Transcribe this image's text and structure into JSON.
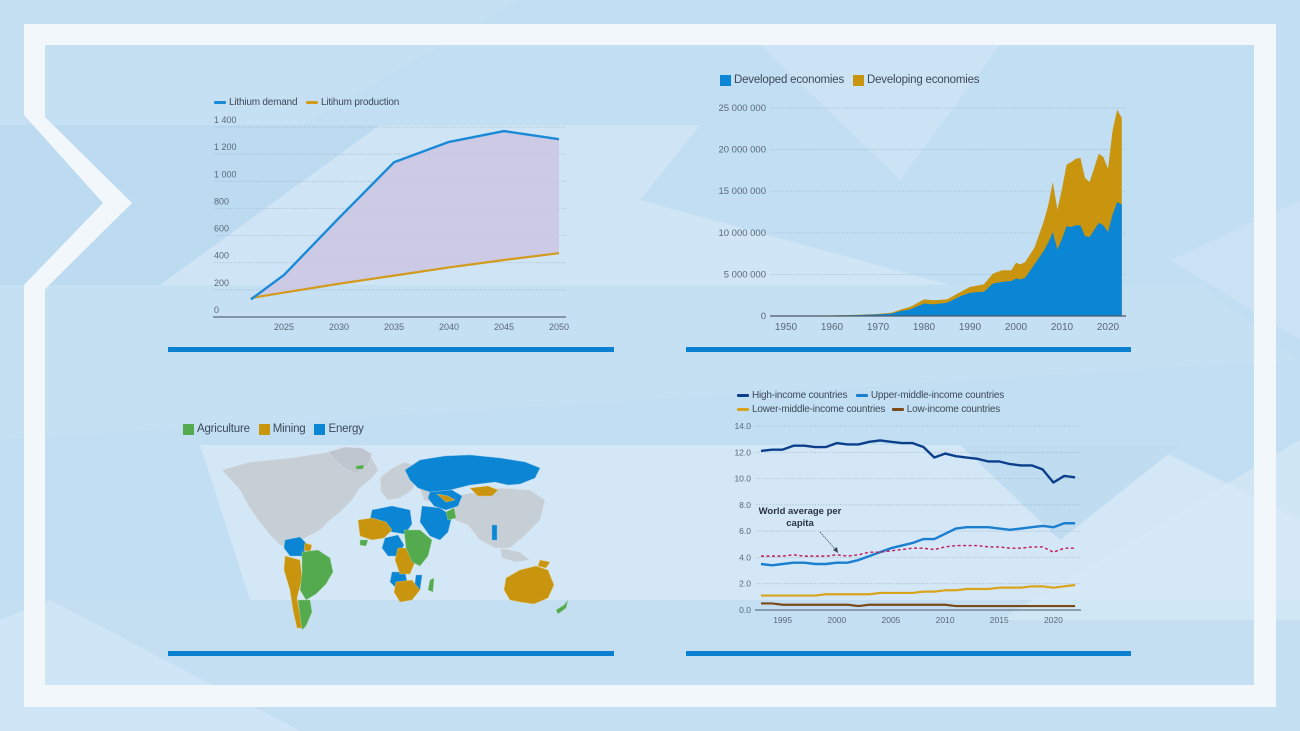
{
  "colors": {
    "background": "#c2def2",
    "frame": "#f2f7fc",
    "accent_bar": "#0a80d0",
    "blue": "#0a86d4",
    "gold": "#c9950f",
    "green": "#54ab4f",
    "navy": "#0b3f8c",
    "brown": "#7a4a1a",
    "world_avg": "#c2185b",
    "fill_gap": "#cdc6e2",
    "land_gray": "#c6ced6"
  },
  "panels": {
    "lithium": {
      "legend": [
        {
          "label": "Lithium demand",
          "color": "#1a8ad8"
        },
        {
          "label": "Litihum production",
          "color": "#d39b1d"
        }
      ]
    },
    "economies": {
      "legend": [
        {
          "label": "Developed economies",
          "color": "#0a86d4"
        },
        {
          "label": "Developing economies",
          "color": "#c9950f"
        }
      ]
    },
    "map": {
      "legend": [
        {
          "label": "Agriculture",
          "color": "#54ab4f"
        },
        {
          "label": "Mining",
          "color": "#c9950f"
        },
        {
          "label": "Energy",
          "color": "#0a86d4"
        }
      ]
    },
    "income": {
      "legend": [
        {
          "label": "High-income countries",
          "color": "#0b3f8c"
        },
        {
          "label": "Upper-middle-income countries",
          "color": "#1a7fd0"
        },
        {
          "label": "Lower-middle-income countries",
          "color": "#d9a41c"
        },
        {
          "label": "Low-income countries",
          "color": "#7a4a1a"
        }
      ],
      "annotation_line1": "World average per",
      "annotation_line2": "capita"
    }
  },
  "chart_data": [
    {
      "type": "line",
      "title": "",
      "xlabel": "",
      "ylabel": "",
      "x": [
        2022,
        2025,
        2030,
        2035,
        2040,
        2045,
        2050
      ],
      "x_ticks": [
        2025,
        2030,
        2035,
        2040,
        2045,
        2050
      ],
      "y_ticks": [
        "0",
        "200",
        "400",
        "600",
        "800",
        "1 000",
        "1 200",
        "1 400"
      ],
      "ylim": [
        0,
        1400
      ],
      "series": [
        {
          "name": "Lithium demand",
          "values": [
            130,
            310,
            730,
            1140,
            1290,
            1370,
            1310
          ]
        },
        {
          "name": "Litihum production",
          "values": [
            140,
            180,
            245,
            305,
            365,
            420,
            470
          ]
        }
      ],
      "area_between_series": true,
      "grid": "horizontal dotted",
      "legend_position": "top-left"
    },
    {
      "type": "area",
      "stacked": true,
      "title": "",
      "xlabel": "",
      "ylabel": "",
      "x": [
        1947,
        1950,
        1955,
        1960,
        1965,
        1970,
        1973,
        1975,
        1977,
        1980,
        1982,
        1985,
        1988,
        1990,
        1992,
        1993,
        1995,
        1997,
        1999,
        2000,
        2001,
        2002,
        2004,
        2006,
        2007,
        2008,
        2009,
        2010,
        2011,
        2012,
        2013,
        2014,
        2015,
        2016,
        2018,
        2019,
        2020,
        2021,
        2022,
        2023
      ],
      "x_ticks": [
        1950,
        1960,
        1970,
        1980,
        1990,
        2000,
        2010,
        2020
      ],
      "y_ticks": [
        "0",
        "5 000 000",
        "10 000 000",
        "15 000 000",
        "20 000 000",
        "25 000 000"
      ],
      "ylim": [
        0,
        25000000
      ],
      "series": [
        {
          "name": "Developed economies",
          "values": [
            10000,
            20000,
            40000,
            60000,
            100000,
            200000,
            300000,
            600000,
            800000,
            1500000,
            1400000,
            1600000,
            2400000,
            2800000,
            2900000,
            2900000,
            3900000,
            4100000,
            4200000,
            4500000,
            4400000,
            4600000,
            6200000,
            7800000,
            8800000,
            10100000,
            8000000,
            9300000,
            10800000,
            10700000,
            10900000,
            10900000,
            9600000,
            9500000,
            11200000,
            10900000,
            10100000,
            12200000,
            13700000,
            13400000
          ]
        },
        {
          "name": "Developing economies",
          "values": [
            0,
            0,
            0,
            10000,
            30000,
            60000,
            100000,
            200000,
            300000,
            500000,
            500000,
            400000,
            500000,
            700000,
            800000,
            900000,
            1200000,
            1400000,
            1300000,
            1900000,
            1800000,
            1900000,
            2000000,
            3500000,
            4500000,
            6000000,
            4800000,
            6000000,
            7400000,
            7800000,
            8000000,
            8100000,
            7000000,
            6600000,
            8300000,
            8200000,
            7600000,
            10100000,
            11100000,
            10400000
          ]
        }
      ],
      "grid": "horizontal dotted",
      "legend_position": "top-left"
    },
    {
      "type": "choropleth",
      "title": "",
      "legend": [
        "Agriculture",
        "Mining",
        "Energy"
      ],
      "regions": {
        "Agriculture": [
          "Brazil",
          "Argentina",
          "Paraguay",
          "Uruguay",
          "Sudan",
          "Ethiopia",
          "Kenya",
          "Madagascar",
          "New Zealand",
          "Afghanistan",
          "Iceland",
          "Cuba"
        ],
        "Mining": [
          "Peru",
          "Bolivia",
          "Chile",
          "Guyana",
          "Suriname",
          "Mali",
          "Niger",
          "Mauritania",
          "DR Congo",
          "Zambia",
          "Namibia",
          "Botswana",
          "South Africa",
          "Mongolia",
          "Kazakhstan (south)",
          "Australia",
          "Papua New Guinea"
        ],
        "Energy": [
          "Russia",
          "Venezuela",
          "Colombia",
          "Algeria",
          "Libya",
          "Egypt",
          "Chad",
          "Nigeria",
          "Angola",
          "Mozambique",
          "Saudi Arabia",
          "Iran",
          "Iraq",
          "Kazakhstan",
          "Turkmenistan",
          "Norway",
          "Laos"
        ]
      },
      "legend_position": "top-left"
    },
    {
      "type": "line",
      "title": "",
      "xlabel": "",
      "ylabel": "",
      "x": [
        1993,
        1994,
        1995,
        1996,
        1997,
        1998,
        1999,
        2000,
        2001,
        2002,
        2003,
        2004,
        2005,
        2006,
        2007,
        2008,
        2009,
        2010,
        2011,
        2012,
        2013,
        2014,
        2015,
        2016,
        2017,
        2018,
        2019,
        2020,
        2021,
        2022
      ],
      "x_ticks": [
        1995,
        2000,
        2005,
        2010,
        2015,
        2020
      ],
      "y_ticks": [
        "0.0",
        "2.0",
        "4.0",
        "6.0",
        "8.0",
        "10.0",
        "12.0",
        "14.0"
      ],
      "ylim": [
        0,
        14
      ],
      "series": [
        {
          "name": "High-income countries",
          "values": [
            12.1,
            12.2,
            12.2,
            12.5,
            12.5,
            12.4,
            12.4,
            12.7,
            12.6,
            12.6,
            12.8,
            12.9,
            12.8,
            12.7,
            12.7,
            12.4,
            11.6,
            11.9,
            11.7,
            11.6,
            11.5,
            11.3,
            11.3,
            11.1,
            11.0,
            11.0,
            10.7,
            9.7,
            10.2,
            10.1
          ]
        },
        {
          "name": "Upper-middle-income countries",
          "values": [
            3.5,
            3.4,
            3.5,
            3.6,
            3.6,
            3.5,
            3.5,
            3.6,
            3.6,
            3.8,
            4.1,
            4.4,
            4.7,
            4.9,
            5.1,
            5.4,
            5.4,
            5.8,
            6.2,
            6.3,
            6.3,
            6.3,
            6.2,
            6.1,
            6.2,
            6.3,
            6.4,
            6.3,
            6.6,
            6.6
          ]
        },
        {
          "name": "Lower-middle-income countries",
          "values": [
            1.1,
            1.1,
            1.1,
            1.1,
            1.1,
            1.1,
            1.2,
            1.2,
            1.2,
            1.2,
            1.2,
            1.3,
            1.3,
            1.3,
            1.3,
            1.4,
            1.4,
            1.5,
            1.5,
            1.6,
            1.6,
            1.6,
            1.7,
            1.7,
            1.7,
            1.8,
            1.8,
            1.7,
            1.8,
            1.9
          ]
        },
        {
          "name": "Low-income countries",
          "values": [
            0.5,
            0.5,
            0.4,
            0.4,
            0.4,
            0.4,
            0.4,
            0.4,
            0.4,
            0.3,
            0.4,
            0.4,
            0.4,
            0.4,
            0.4,
            0.4,
            0.4,
            0.4,
            0.3,
            0.3,
            0.3,
            0.3,
            0.3,
            0.3,
            0.3,
            0.3,
            0.3,
            0.3,
            0.3,
            0.3
          ]
        },
        {
          "name": "World average per capita",
          "style": "dashed",
          "values": [
            4.1,
            4.1,
            4.1,
            4.2,
            4.1,
            4.1,
            4.1,
            4.2,
            4.1,
            4.2,
            4.4,
            4.4,
            4.5,
            4.6,
            4.7,
            4.7,
            4.6,
            4.8,
            4.9,
            4.9,
            4.9,
            4.8,
            4.8,
            4.7,
            4.7,
            4.8,
            4.8,
            4.4,
            4.7,
            4.7
          ]
        }
      ],
      "annotations": [
        {
          "text": "World average per capita",
          "points_to": [
            2001,
            4.2
          ]
        }
      ],
      "grid": "horizontal dotted",
      "legend_position": "top-left"
    }
  ]
}
